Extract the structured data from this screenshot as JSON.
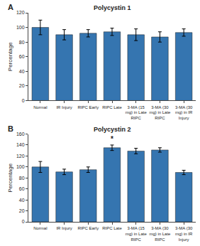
{
  "chart_data": [
    {
      "type": "bar",
      "title": "Polycystin 1",
      "panel_label": "A",
      "ylabel": "Percentage",
      "categories": [
        "Normal",
        "IR Injury",
        "RIPC Early",
        "RIPC Late",
        "3-MA (15\nmg) in Late\nRIPC",
        "3-MA (30\nmg) in Late\nRIPC",
        "3-MA (30\nmg) in IR\nInjury"
      ],
      "values": [
        100,
        90,
        92,
        94,
        90,
        87,
        93
      ],
      "errors": [
        10,
        7,
        5,
        5,
        8,
        7,
        5
      ],
      "color": "#3575B0",
      "ylim": [
        0,
        120
      ],
      "yticks": [
        0,
        20,
        40,
        60,
        80,
        100,
        120
      ],
      "grid": false
    },
    {
      "type": "bar",
      "title": "Polycystin 2",
      "panel_label": "B",
      "ylabel": "Percentage",
      "categories": [
        "Normal",
        "IR Injury",
        "RIPC Early",
        "RIPC Late",
        "3-MA (15\nmg) in Late\nRIPC",
        "3-MA (30\nmg) in Late\nRIPC",
        "3-MA (30\nmg) in IR\nInjury"
      ],
      "values": [
        100,
        91,
        95,
        135,
        129,
        131,
        90
      ],
      "errors": [
        10,
        5,
        5,
        5,
        5,
        4,
        4
      ],
      "color": "#3575B0",
      "ylim": [
        0,
        160
      ],
      "yticks": [
        0,
        20,
        40,
        60,
        80,
        100,
        120,
        140,
        160
      ],
      "grid": false,
      "annotations": [
        {
          "text": "*",
          "category": "RIPC Late"
        }
      ]
    }
  ]
}
